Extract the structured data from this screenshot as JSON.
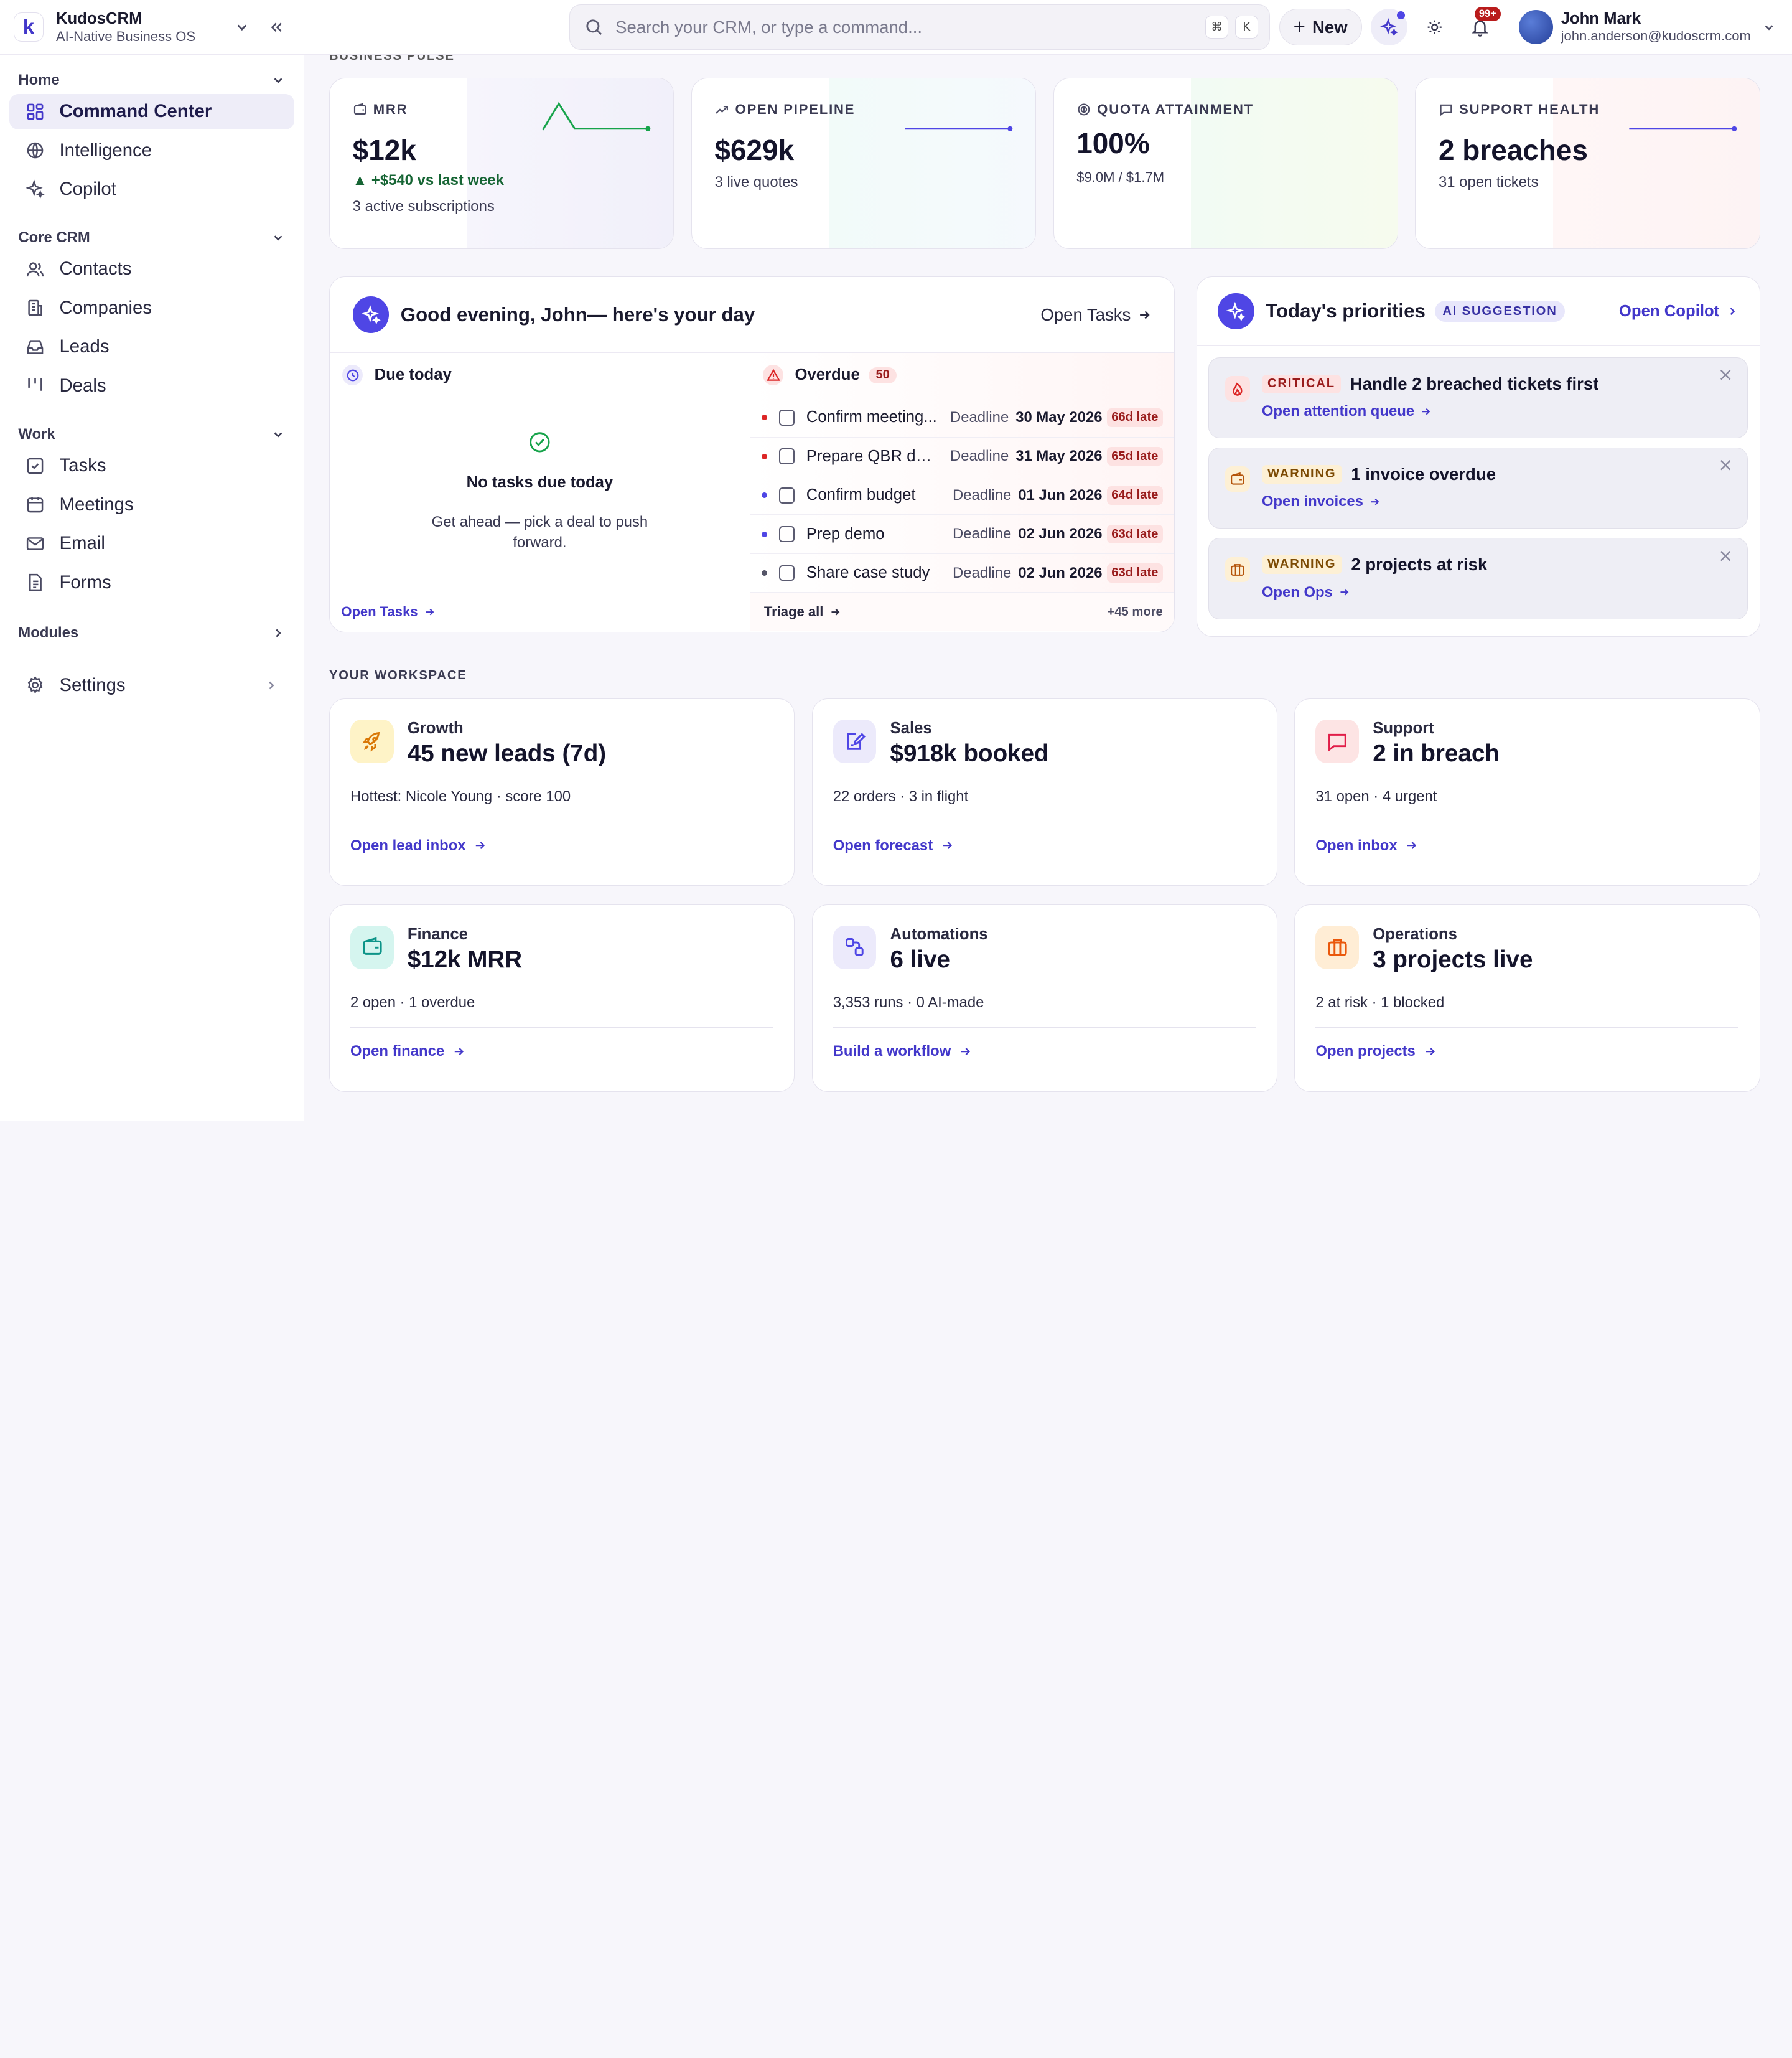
{
  "brand": {
    "name": "KudosCRM",
    "tagline": "AI-Native Business OS",
    "logo_letter": "k"
  },
  "sidebar": {
    "sections": [
      {
        "title": "Home",
        "items": [
          {
            "label": "Command Center",
            "icon": "grid-icon",
            "active": true
          },
          {
            "label": "Intelligence",
            "icon": "globe-icon"
          },
          {
            "label": "Copilot",
            "icon": "sparkles-icon"
          }
        ]
      },
      {
        "title": "Core CRM",
        "items": [
          {
            "label": "Contacts",
            "icon": "users-icon"
          },
          {
            "label": "Companies",
            "icon": "building-icon"
          },
          {
            "label": "Leads",
            "icon": "inbox-icon"
          },
          {
            "label": "Deals",
            "icon": "kanban-icon"
          }
        ]
      },
      {
        "title": "Work",
        "items": [
          {
            "label": "Tasks",
            "icon": "checkbox-icon"
          },
          {
            "label": "Meetings",
            "icon": "calendar-icon"
          },
          {
            "label": "Email",
            "icon": "mail-icon"
          },
          {
            "label": "Forms",
            "icon": "file-icon"
          }
        ]
      }
    ],
    "modules_label": "Modules",
    "settings_label": "Settings"
  },
  "topbar": {
    "search_placeholder": "Search your CRM, or type a command...",
    "kbd_cmd": "⌘",
    "kbd_k": "K",
    "new_label": "New",
    "notif_count": "99+",
    "user_name": "John Mark",
    "user_email": "john.anderson@kudoscrm.com"
  },
  "pulse_label": "BUSINESS PULSE",
  "kpis": [
    {
      "title": "MRR",
      "value": "$12k",
      "delta": "▲ +$540 vs last week",
      "sub": "3 active subscriptions",
      "icon": "wallet-icon",
      "accent": "#16a34a"
    },
    {
      "title": "OPEN PIPELINE",
      "value": "$629k",
      "sub": "3 live quotes",
      "icon": "trend-icon",
      "accent": "#4f46e5"
    },
    {
      "title": "QUOTA ATTAINMENT",
      "value": "100%",
      "sub": "$9.0M / $1.7M",
      "icon": "target-icon",
      "accent": "#84cc16"
    },
    {
      "title": "SUPPORT HEALTH",
      "value": "2 breaches",
      "sub": "31 open tickets",
      "icon": "chat-icon",
      "accent": "#4f46e5"
    }
  ],
  "day": {
    "title": "Good evening, John— here's your day",
    "open_tasks": "Open Tasks",
    "due_today": "Due today",
    "empty_title": "No tasks due today",
    "empty_sub": "Get ahead — pick a deal to push forward.",
    "overdue": "Overdue",
    "overdue_count": "50",
    "deadline_label": "Deadline",
    "tasks": [
      {
        "name": "Confirm meeting...",
        "date": "30 May 2026",
        "late": "66d late",
        "dot": "#dc2626"
      },
      {
        "name": "Prepare QBR de...",
        "date": "31 May 2026",
        "late": "65d late",
        "dot": "#dc2626"
      },
      {
        "name": "Confirm budget",
        "date": "01 Jun 2026",
        "late": "64d late",
        "dot": "#4f46e5"
      },
      {
        "name": "Prep demo",
        "date": "02 Jun 2026",
        "late": "63d late",
        "dot": "#4f46e5"
      },
      {
        "name": "Share case study",
        "date": "02 Jun 2026",
        "late": "63d late",
        "dot": "#555568"
      }
    ],
    "foot_open": "Open Tasks",
    "foot_triage": "Triage all",
    "foot_more": "+45 more"
  },
  "priorities": {
    "title": "Today's priorities",
    "badge": "AI SUGGESTION",
    "open_copilot": "Open Copilot",
    "items": [
      {
        "severity": "CRITICAL",
        "title": "Handle 2 breached tickets first",
        "action": "Open attention queue",
        "icon": "flame-icon"
      },
      {
        "severity": "WARNING",
        "title": "1 invoice overdue",
        "action": "Open invoices",
        "icon": "wallet-icon"
      },
      {
        "severity": "WARNING",
        "title": "2 projects at risk",
        "action": "Open Ops",
        "icon": "briefcase-icon"
      }
    ]
  },
  "workspace": {
    "label": "YOUR WORKSPACE",
    "cards": [
      {
        "name": "Growth",
        "value": "45 new leads (7d)",
        "sub": "Hottest: Nicole Young · score 100",
        "link": "Open lead inbox",
        "icon": "rocket-icon",
        "bg": "#fef3c7",
        "fg": "#d97706"
      },
      {
        "name": "Sales",
        "value": "$918k booked",
        "sub": "22 orders · 3 in flight",
        "link": "Open forecast",
        "icon": "edit-doc-icon",
        "bg": "#eceafb",
        "fg": "#4f46e5"
      },
      {
        "name": "Support",
        "value": "2 in breach",
        "sub": "31 open · 4 urgent",
        "link": "Open inbox",
        "icon": "chat-icon",
        "bg": "#fde4e4",
        "fg": "#e11d48"
      },
      {
        "name": "Finance",
        "value": "$12k MRR",
        "sub": "2 open · 1 overdue",
        "link": "Open finance",
        "icon": "wallet-icon",
        "bg": "#d5f5ef",
        "fg": "#0d9488"
      },
      {
        "name": "Automations",
        "value": "6 live",
        "sub": "3,353 runs · 0 AI-made",
        "link": "Build a workflow",
        "icon": "workflow-icon",
        "bg": "#eceafb",
        "fg": "#4f46e5"
      },
      {
        "name": "Operations",
        "value": "3 projects live",
        "sub": "2 at risk · 1 blocked",
        "link": "Open projects",
        "icon": "briefcase-icon",
        "bg": "#ffedd5",
        "fg": "#ea580c"
      }
    ]
  }
}
